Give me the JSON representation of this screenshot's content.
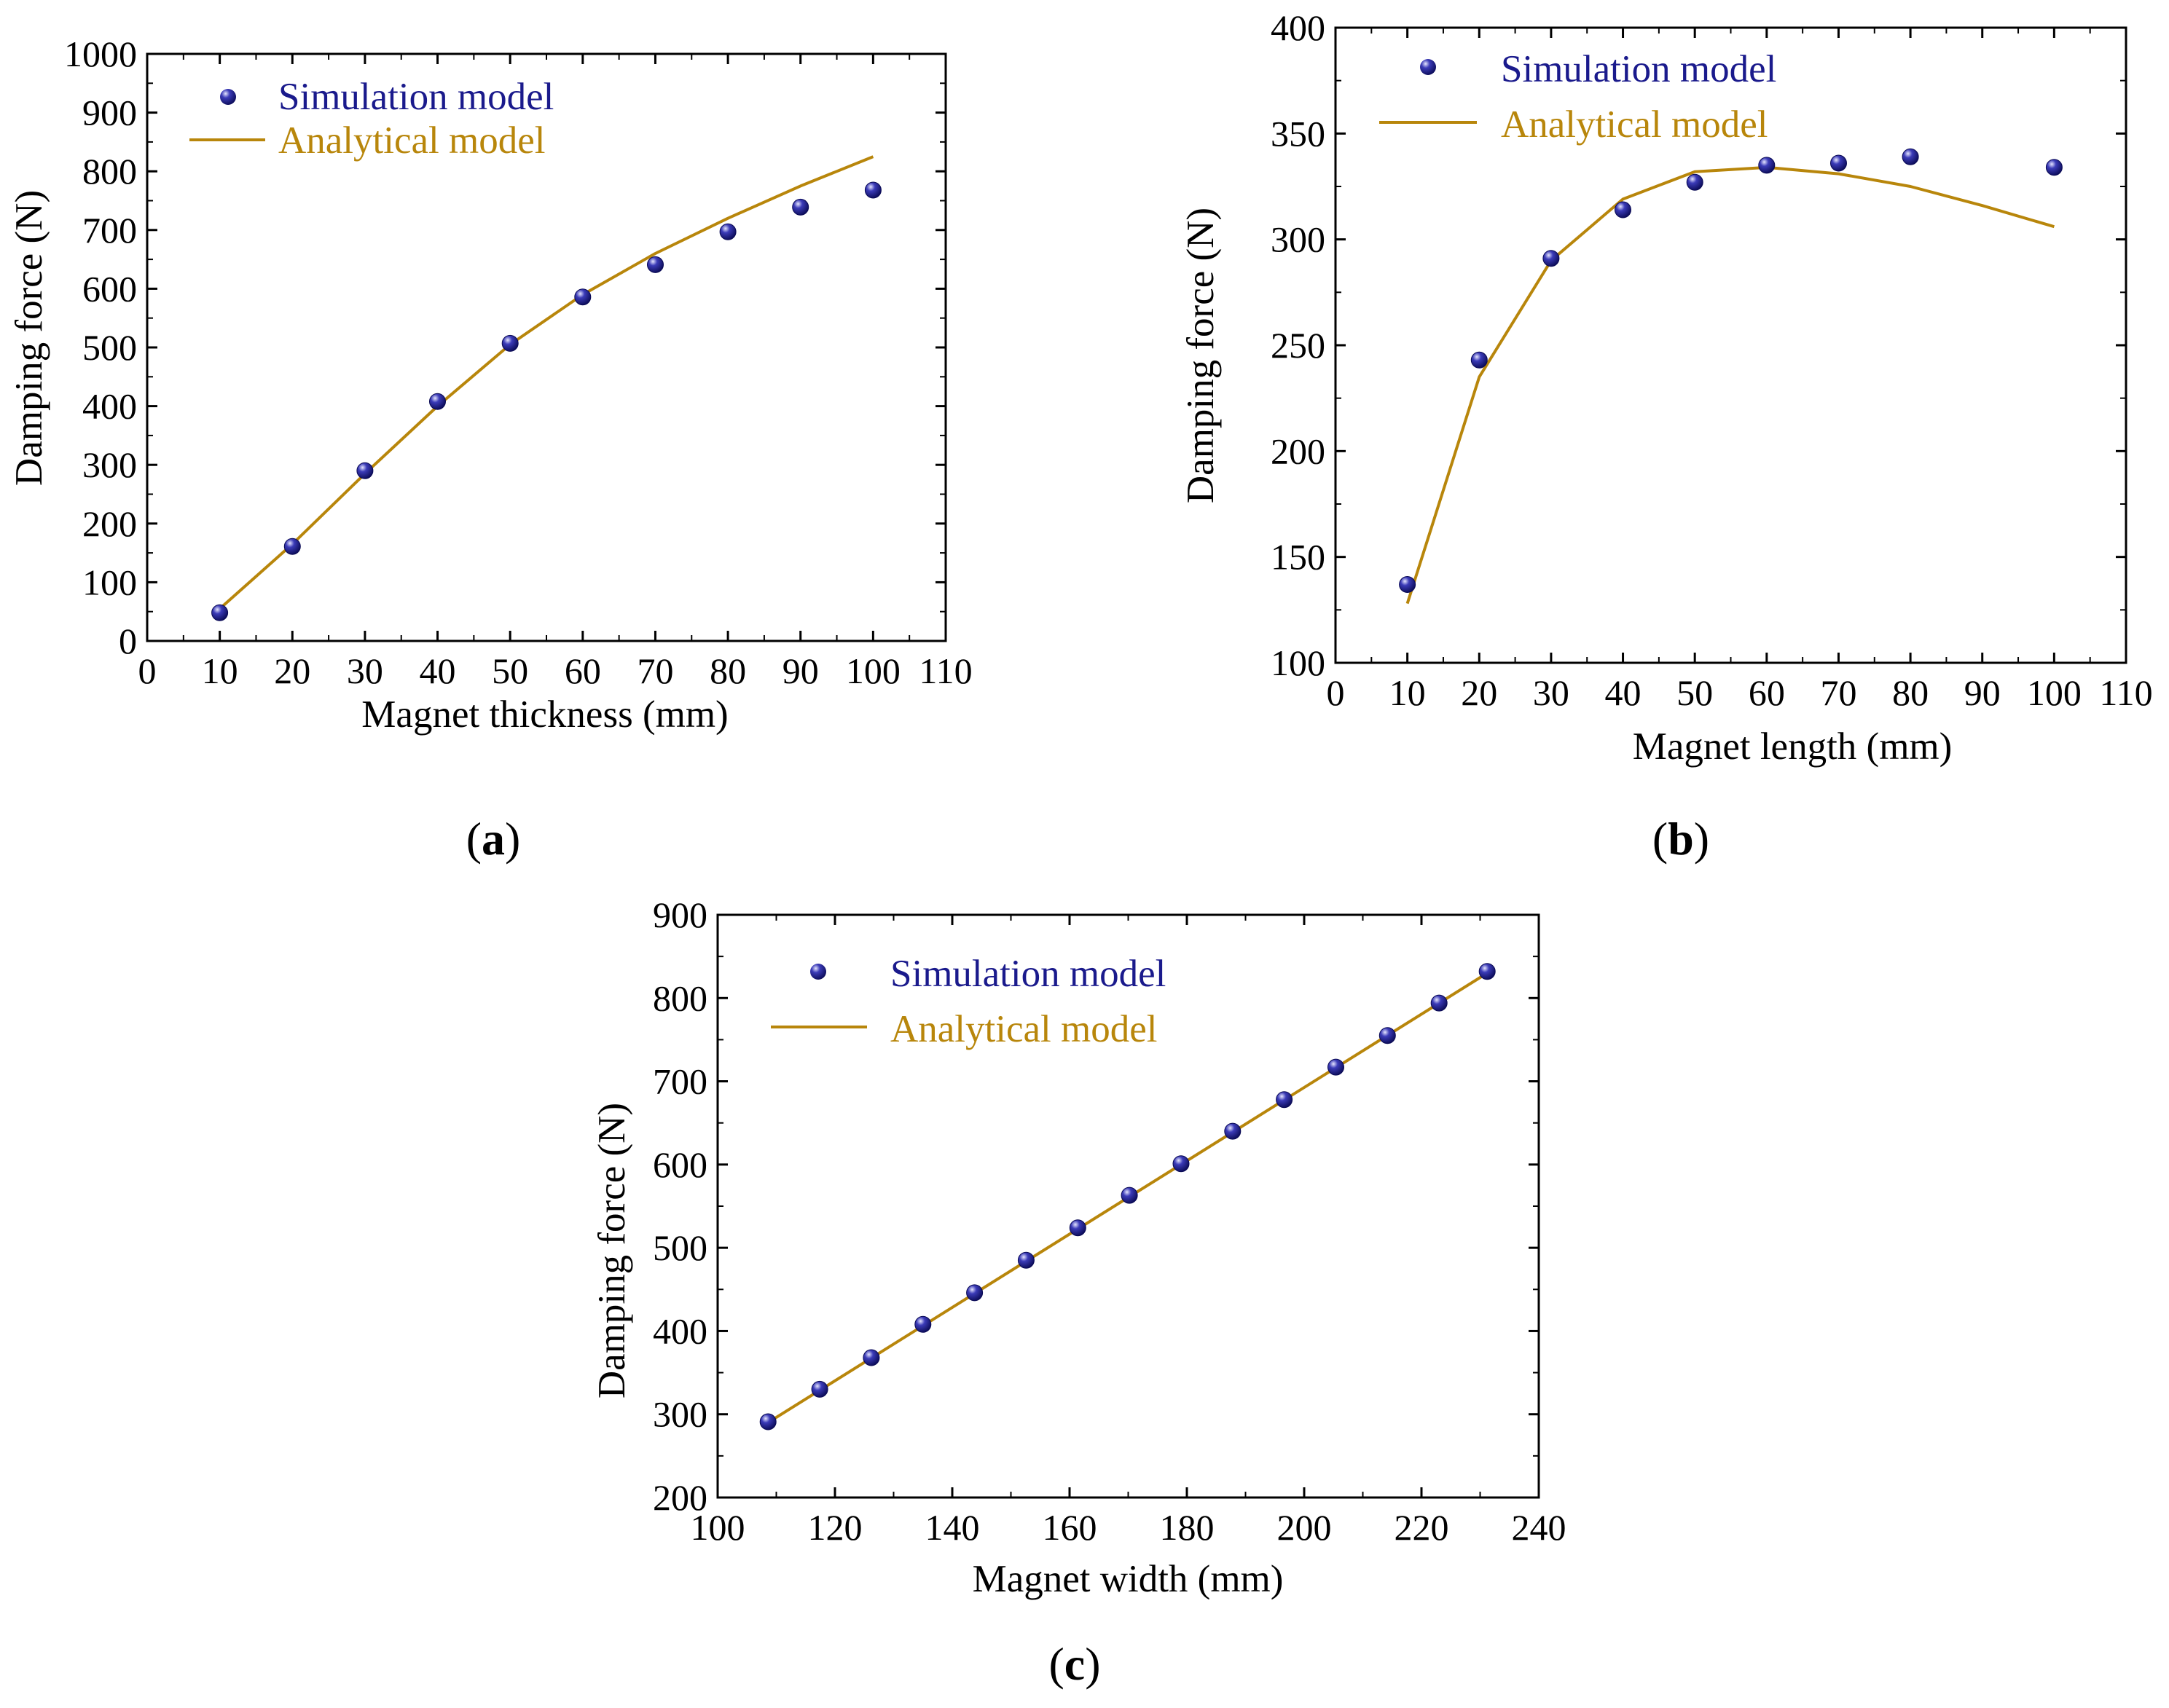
{
  "colors": {
    "simulation": "#1a1a8c",
    "analytical": "#b8860b",
    "axis": "#000000"
  },
  "chart_data": [
    {
      "id": "a",
      "type": "scatter+line",
      "panel_label": "a",
      "xlabel": "Magnet thickness  (mm)",
      "ylabel": "Damping force (N)",
      "xlim": [
        0,
        110
      ],
      "ylim": [
        0,
        1000
      ],
      "xticks": [
        0,
        10,
        20,
        30,
        40,
        50,
        60,
        70,
        80,
        90,
        100,
        110
      ],
      "yticks": [
        0,
        100,
        200,
        300,
        400,
        500,
        600,
        700,
        800,
        900,
        1000
      ],
      "legend": {
        "position": "top-left",
        "simulation": "Simulation model",
        "analytical": "Analytical  model"
      },
      "series": [
        {
          "name": "Simulation model",
          "kind": "points",
          "x": [
            10,
            20,
            30,
            40,
            50,
            60,
            70,
            80,
            90,
            100
          ],
          "y": [
            48,
            161,
            290,
            408,
            507,
            586,
            641,
            697,
            739,
            768
          ]
        },
        {
          "name": "Analytical  model",
          "kind": "line",
          "x": [
            10,
            20,
            30,
            40,
            50,
            60,
            70,
            80,
            90,
            100
          ],
          "y": [
            55,
            165,
            285,
            400,
            505,
            590,
            660,
            720,
            775,
            825
          ]
        }
      ]
    },
    {
      "id": "b",
      "type": "scatter+line",
      "panel_label": "b",
      "xlabel": "Magnet length (mm)",
      "ylabel": "Damping force (N)",
      "xlim": [
        0,
        110
      ],
      "ylim": [
        100,
        400
      ],
      "xticks": [
        0,
        10,
        20,
        30,
        40,
        50,
        60,
        70,
        80,
        90,
        100,
        110
      ],
      "yticks": [
        100,
        150,
        200,
        250,
        300,
        350,
        400
      ],
      "legend": {
        "position": "top",
        "simulation": "Simulation model",
        "analytical": "Analytical  model"
      },
      "series": [
        {
          "name": "Simulation model",
          "kind": "points",
          "x": [
            10,
            20,
            30,
            40,
            50,
            60,
            70,
            80,
            100
          ],
          "y": [
            137,
            243,
            291,
            314,
            327,
            335,
            336,
            339,
            334
          ]
        },
        {
          "name": "Analytical  model",
          "kind": "line",
          "x": [
            10,
            20,
            30,
            40,
            50,
            60,
            70,
            80,
            90,
            100
          ],
          "y": [
            128,
            235,
            290,
            319,
            332,
            334,
            331,
            325,
            316,
            306
          ]
        }
      ]
    },
    {
      "id": "c",
      "type": "scatter+line",
      "panel_label": "c",
      "xlabel": "Magnet width (mm)",
      "ylabel": "Damping force (N)",
      "xlim": [
        100,
        240
      ],
      "ylim": [
        200,
        900
      ],
      "xticks": [
        100,
        120,
        140,
        160,
        180,
        200,
        220,
        240
      ],
      "yticks": [
        200,
        300,
        400,
        500,
        600,
        700,
        800,
        900
      ],
      "legend": {
        "position": "top-left",
        "simulation": "Simulation model",
        "analytical": "Analytical  model"
      },
      "series": [
        {
          "name": "Simulation model",
          "kind": "points",
          "x": [
            108.6,
            117.4,
            126.2,
            135,
            143.8,
            152.6,
            161.4,
            170.2,
            179,
            187.8,
            196.6,
            205.4,
            214.2,
            223,
            231.2
          ],
          "y": [
            291,
            330,
            368,
            408,
            446,
            485,
            524,
            563,
            601,
            640,
            678,
            717,
            755,
            794,
            832
          ]
        },
        {
          "name": "Analytical  model",
          "kind": "line",
          "x": [
            108.6,
            231.2
          ],
          "y": [
            290,
            830
          ]
        }
      ]
    }
  ]
}
